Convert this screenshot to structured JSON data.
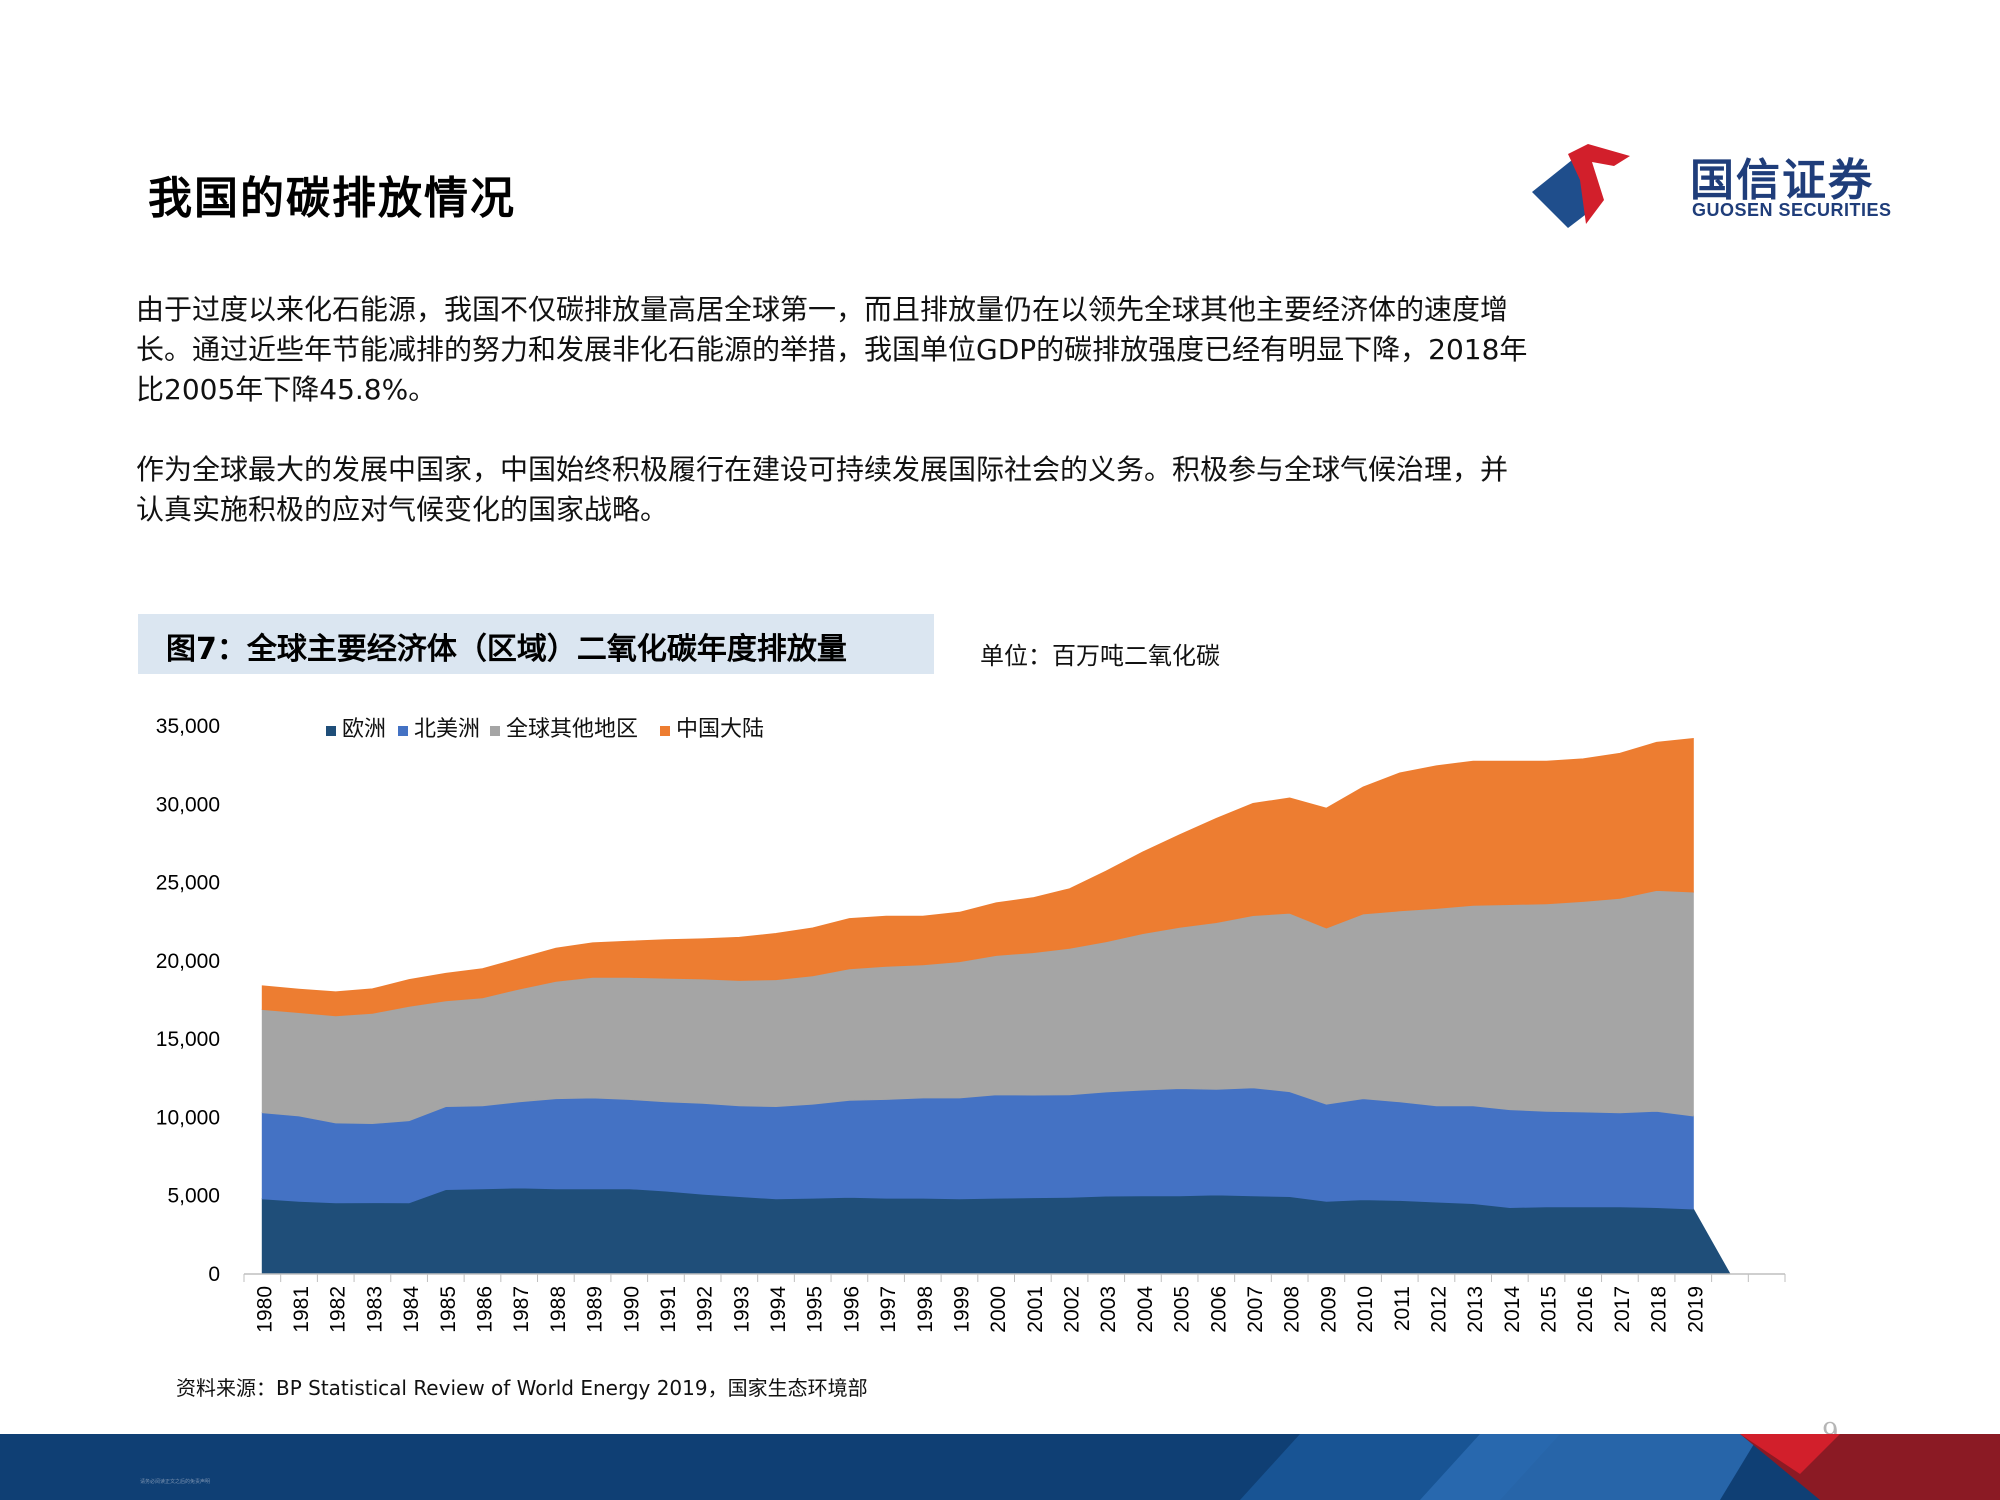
{
  "page": {
    "title": "我国的碳排放情况",
    "page_number": "9",
    "footer_small_text": "请务必阅读正文之后的免责声明"
  },
  "logo": {
    "cn": "国信证券",
    "en": "GUOSEN SECURITIES"
  },
  "paragraphs": [
    {
      "lines": [
        "由于过度以来化石能源，我国不仅碳排放量高居全球第一，而且排放量仍在以领先全球其他主要经济体的速度增",
        "长。通过近些年节能减排的努力和发展非化石能源的举措，我国单位GDP的碳排放强度已经有明显下降，2018年",
        "比2005年下降45.8%。"
      ]
    },
    {
      "lines": [
        "作为全球最大的发展中国家，中国始终积极履行在建设可持续发展国际社会的义务。积极参与全球气候治理，并",
        "认真实施积极的应对气候变化的国家战略。"
      ]
    }
  ],
  "figure": {
    "caption": "图7：全球主要经济体（区域）二氧化碳年度排放量",
    "unit": "单位：百万吨二氧化碳",
    "source": "资料来源：BP Statistical Review of World Energy 2019，国家生态环境部"
  },
  "chart_data": {
    "type": "area",
    "stacked": true,
    "title": "",
    "xlabel": "",
    "ylabel": "",
    "ylim": [
      0,
      35000
    ],
    "yticks": [
      "0",
      "5,000",
      "10,000",
      "15,000",
      "20,000",
      "25,000",
      "30,000",
      "35,000"
    ],
    "x": [
      1980,
      1981,
      1982,
      1983,
      1984,
      1985,
      1986,
      1987,
      1988,
      1989,
      1990,
      1991,
      1992,
      1993,
      1994,
      1995,
      1996,
      1997,
      1998,
      1999,
      2000,
      2001,
      2002,
      2003,
      2004,
      2005,
      2006,
      2007,
      2008,
      2009,
      2010,
      2011,
      2012,
      2013,
      2014,
      2015,
      2016,
      2017,
      2018,
      2019
    ],
    "grid": false,
    "legend_position": "top-left",
    "series": [
      {
        "name": "欧洲",
        "color": "#1f4e79",
        "values": [
          4800,
          4650,
          4550,
          4560,
          4550,
          5400,
          5450,
          5500,
          5450,
          5450,
          5450,
          5300,
          5100,
          4950,
          4800,
          4850,
          4900,
          4850,
          4850,
          4800,
          4850,
          4880,
          4900,
          4980,
          5000,
          5000,
          5050,
          5000,
          4950,
          4650,
          4750,
          4700,
          4600,
          4500,
          4250,
          4300,
          4300,
          4300,
          4250,
          4150
        ]
      },
      {
        "name": "北美洲",
        "color": "#4472c4",
        "values": [
          5500,
          5450,
          5100,
          5050,
          5250,
          5300,
          5300,
          5500,
          5750,
          5800,
          5700,
          5700,
          5800,
          5800,
          5900,
          6000,
          6200,
          6300,
          6400,
          6450,
          6600,
          6550,
          6550,
          6650,
          6750,
          6850,
          6750,
          6900,
          6700,
          6200,
          6450,
          6300,
          6150,
          6250,
          6250,
          6100,
          6050,
          6000,
          6150,
          5950
        ]
      },
      {
        "name": "全球其他地区",
        "color": "#a5a5a5",
        "values": [
          6600,
          6600,
          6850,
          7050,
          7300,
          6750,
          6900,
          7200,
          7500,
          7700,
          7800,
          7900,
          7950,
          8000,
          8100,
          8200,
          8400,
          8500,
          8500,
          8700,
          8900,
          9100,
          9350,
          9600,
          10000,
          10300,
          10650,
          11000,
          11400,
          11250,
          11800,
          12200,
          12600,
          12800,
          13100,
          13250,
          13450,
          13700,
          14100,
          14300
        ]
      },
      {
        "name": "中国大陆",
        "color": "#ed7d31",
        "values": [
          1500,
          1490,
          1520,
          1550,
          1700,
          1750,
          1850,
          1950,
          2100,
          2200,
          2300,
          2450,
          2550,
          2750,
          2950,
          3050,
          3200,
          3200,
          3100,
          3150,
          3350,
          3500,
          3800,
          4500,
          5200,
          5900,
          6650,
          7150,
          7350,
          7650,
          8100,
          8800,
          9100,
          9200,
          9150,
          9100,
          9100,
          9250,
          9450,
          9800
        ]
      }
    ]
  }
}
